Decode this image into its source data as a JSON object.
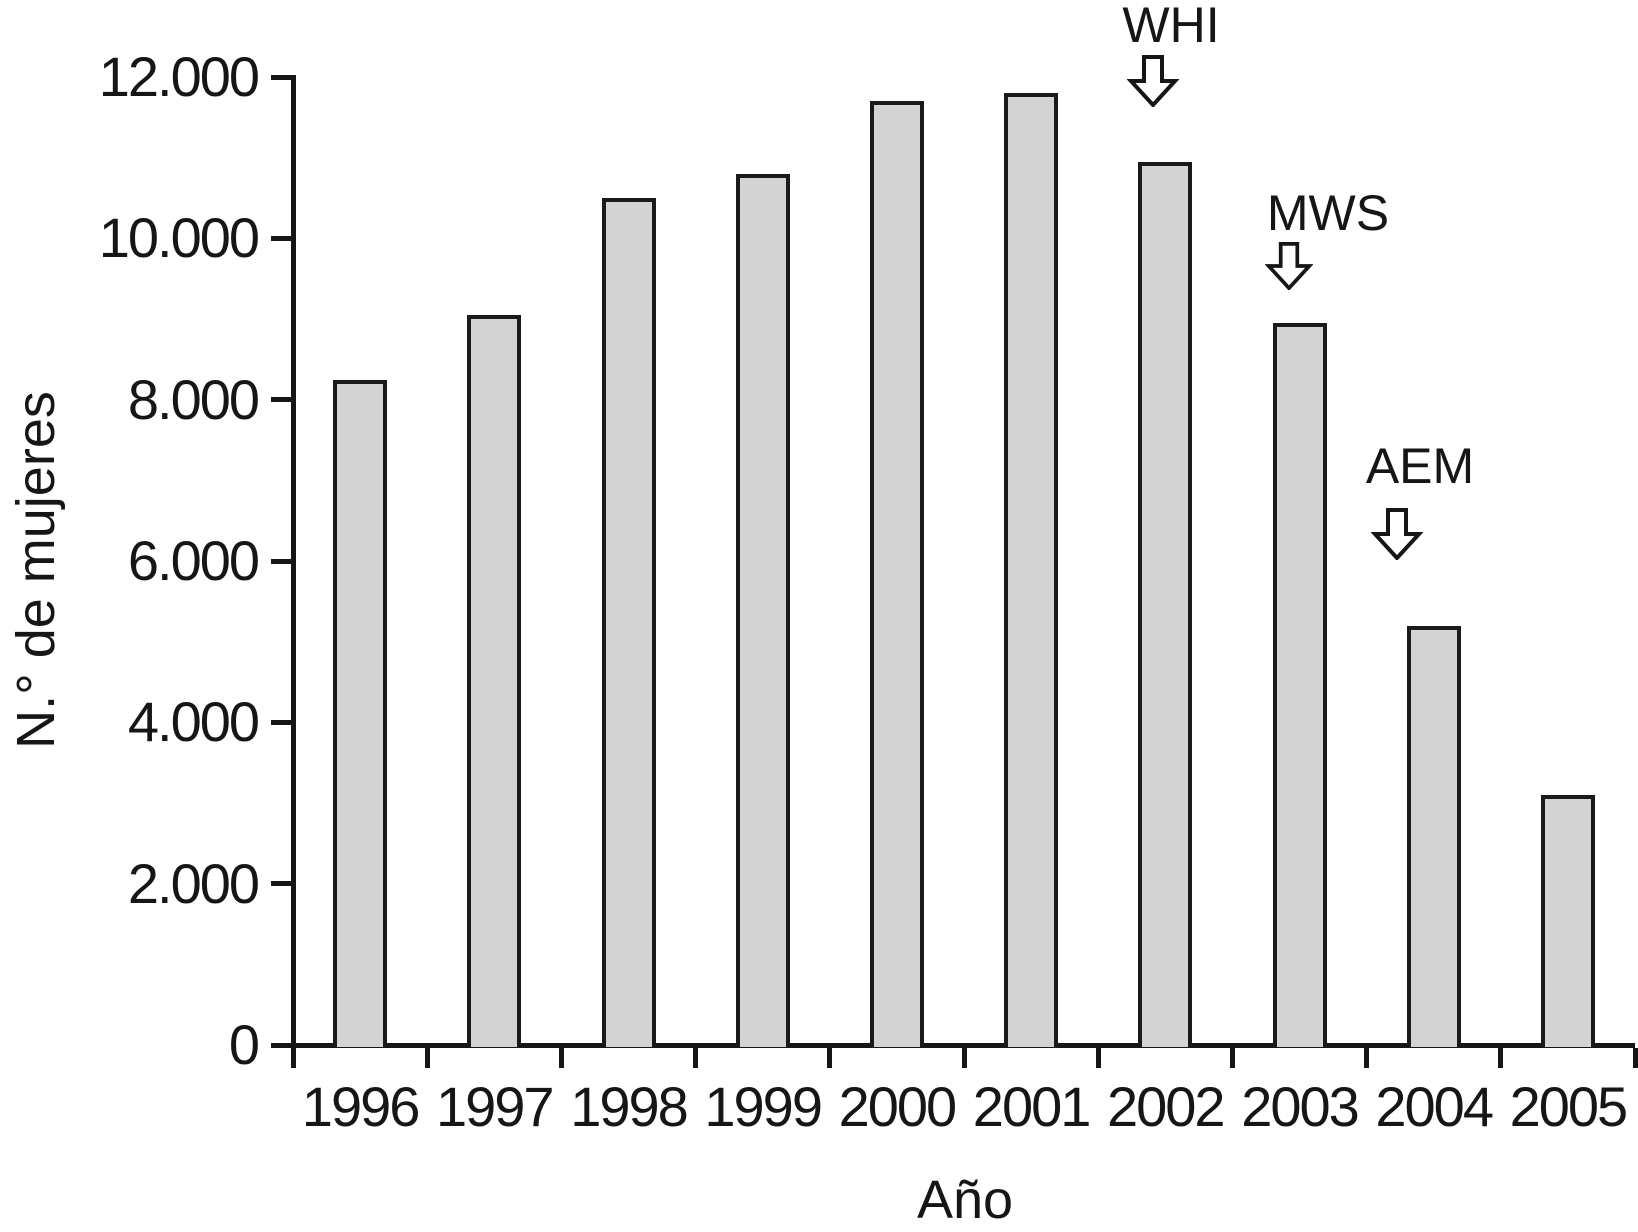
{
  "chart_data": {
    "type": "bar",
    "title": "",
    "categories": [
      "1996",
      "1997",
      "1998",
      "1999",
      "2000",
      "2001",
      "2002",
      "2003",
      "2004",
      "2005"
    ],
    "values": [
      8250,
      9050,
      10500,
      10800,
      11700,
      11800,
      10950,
      8950,
      5200,
      3100
    ],
    "xlabel": "Año",
    "ylabel": "N.° de mujeres",
    "ylim": [
      0,
      12000
    ],
    "y_ticks": [
      {
        "value": 0,
        "label": "0"
      },
      {
        "value": 2000,
        "label": "2.000"
      },
      {
        "value": 4000,
        "label": "4.000"
      },
      {
        "value": 6000,
        "label": "6.000"
      },
      {
        "value": 8000,
        "label": "8.000"
      },
      {
        "value": 10000,
        "label": "10.000"
      },
      {
        "value": 12000,
        "label": "12.000"
      }
    ],
    "grid": false,
    "legend_position": "none",
    "bar_fill_color": "#d3d3d3",
    "bar_border_color": "#1a1a1a",
    "axis_color": "#161616",
    "annotations": [
      {
        "label": "WHI",
        "year": "2002",
        "icon": "down-arrow"
      },
      {
        "label": "MWS",
        "year": "2003",
        "icon": "down-arrow"
      },
      {
        "label": "AEM",
        "year": "2004",
        "icon": "down-arrow"
      }
    ]
  }
}
